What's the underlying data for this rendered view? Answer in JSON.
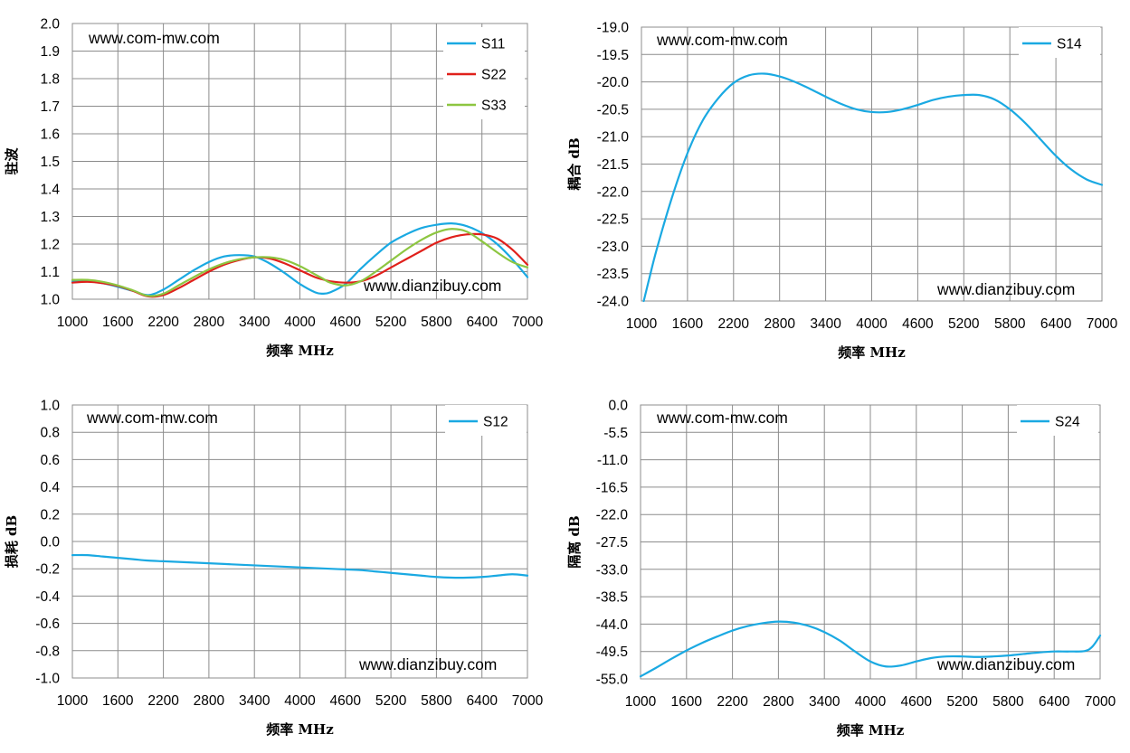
{
  "chart_data": [
    {
      "type": "line",
      "title": "",
      "xlabel": "频率 MHz",
      "ylabel": "驻波",
      "xlim": [
        1000,
        7000
      ],
      "ylim": [
        1.0,
        2.0
      ],
      "xticks": [
        "1000",
        "1600",
        "2200",
        "2800",
        "3400",
        "4000",
        "4600",
        "5200",
        "5800",
        "6400",
        "7000"
      ],
      "yticks": [
        "1.0",
        "1.1",
        "1.2",
        "1.3",
        "1.4",
        "1.5",
        "1.6",
        "1.7",
        "1.8",
        "1.9",
        "2.0"
      ],
      "grid": true,
      "legend_position": "top-right",
      "watermarks": [
        "www.com-mw.com",
        "www.dianzibuy.com"
      ],
      "x": [
        1000,
        1200,
        1400,
        1600,
        1800,
        2000,
        2200,
        2400,
        2600,
        2800,
        3000,
        3200,
        3400,
        3600,
        3800,
        4000,
        4200,
        4300,
        4400,
        4600,
        4800,
        5000,
        5200,
        5400,
        5600,
        5800,
        6000,
        6200,
        6400,
        6600,
        6800,
        7000
      ],
      "series": [
        {
          "name": "S11",
          "color": "#1aa9e2",
          "values": [
            1.065,
            1.065,
            1.058,
            1.045,
            1.03,
            1.015,
            1.035,
            1.07,
            1.105,
            1.135,
            1.155,
            1.16,
            1.155,
            1.13,
            1.095,
            1.055,
            1.025,
            1.02,
            1.025,
            1.055,
            1.11,
            1.16,
            1.205,
            1.235,
            1.258,
            1.27,
            1.275,
            1.265,
            1.24,
            1.2,
            1.145,
            1.08
          ]
        },
        {
          "name": "S22",
          "color": "#e0201b",
          "values": [
            1.06,
            1.063,
            1.058,
            1.048,
            1.03,
            1.01,
            1.015,
            1.04,
            1.07,
            1.1,
            1.125,
            1.142,
            1.152,
            1.148,
            1.13,
            1.105,
            1.08,
            1.072,
            1.065,
            1.06,
            1.065,
            1.085,
            1.115,
            1.145,
            1.175,
            1.205,
            1.225,
            1.235,
            1.235,
            1.22,
            1.18,
            1.125
          ]
        },
        {
          "name": "S33",
          "color": "#8dc641",
          "values": [
            1.07,
            1.07,
            1.063,
            1.05,
            1.032,
            1.012,
            1.02,
            1.05,
            1.08,
            1.108,
            1.13,
            1.145,
            1.152,
            1.152,
            1.142,
            1.12,
            1.09,
            1.075,
            1.06,
            1.05,
            1.065,
            1.1,
            1.14,
            1.18,
            1.215,
            1.242,
            1.255,
            1.245,
            1.21,
            1.17,
            1.135,
            1.115
          ]
        }
      ]
    },
    {
      "type": "line",
      "title": "",
      "xlabel": "频率 MHz",
      "ylabel": "耦合 dB",
      "xlim": [
        1000,
        7000
      ],
      "ylim": [
        -24.0,
        -19.0
      ],
      "xticks": [
        "1000",
        "1600",
        "2200",
        "2800",
        "3400",
        "4000",
        "4600",
        "5200",
        "5800",
        "6400",
        "7000"
      ],
      "yticks": [
        "-24.0",
        "-23.5",
        "-23.0",
        "-22.5",
        "-22.0",
        "-21.5",
        "-21.0",
        "-20.5",
        "-20.0",
        "-19.5",
        "-19.0"
      ],
      "grid": true,
      "legend_position": "top-right",
      "watermarks": [
        "www.com-mw.com",
        "www.dianzibuy.com"
      ],
      "x": [
        1030,
        1100,
        1200,
        1400,
        1600,
        1800,
        2000,
        2200,
        2400,
        2600,
        2800,
        3000,
        3200,
        3400,
        3600,
        3800,
        4000,
        4200,
        4400,
        4600,
        4800,
        5000,
        5200,
        5400,
        5600,
        5800,
        6000,
        6200,
        6400,
        6600,
        6800,
        7000
      ],
      "series": [
        {
          "name": "S14",
          "color": "#1aa9e2",
          "values": [
            -24.0,
            -23.6,
            -23.05,
            -22.1,
            -21.3,
            -20.7,
            -20.3,
            -20.02,
            -19.88,
            -19.85,
            -19.9,
            -20.0,
            -20.13,
            -20.27,
            -20.4,
            -20.5,
            -20.55,
            -20.55,
            -20.5,
            -20.42,
            -20.33,
            -20.27,
            -20.24,
            -20.24,
            -20.32,
            -20.5,
            -20.75,
            -21.05,
            -21.35,
            -21.6,
            -21.78,
            -21.88
          ]
        }
      ]
    },
    {
      "type": "line",
      "title": "",
      "xlabel": "频率 MHz",
      "ylabel": "损耗 dB",
      "xlim": [
        1000,
        7000
      ],
      "ylim": [
        -1.0,
        1.0
      ],
      "xticks": [
        "1000",
        "1600",
        "2200",
        "2800",
        "3400",
        "4000",
        "4600",
        "5200",
        "5800",
        "6400",
        "7000"
      ],
      "yticks": [
        "-1.0",
        "-0.8",
        "-0.6",
        "-0.4",
        "-0.2",
        "0.0",
        "0.2",
        "0.4",
        "0.6",
        "0.8",
        "1.0"
      ],
      "grid": true,
      "legend_position": "top-right",
      "watermarks": [
        "www.com-mw.com",
        "www.dianzibuy.com"
      ],
      "x": [
        1000,
        1200,
        1400,
        1600,
        1800,
        2000,
        2200,
        2400,
        2600,
        2800,
        3000,
        3200,
        3400,
        3600,
        3800,
        4000,
        4200,
        4400,
        4600,
        4800,
        5000,
        5200,
        5400,
        5600,
        5800,
        6000,
        6200,
        6400,
        6600,
        6800,
        7000
      ],
      "series": [
        {
          "name": "S12",
          "color": "#1aa9e2",
          "values": [
            -0.1,
            -0.1,
            -0.11,
            -0.12,
            -0.13,
            -0.14,
            -0.145,
            -0.15,
            -0.155,
            -0.16,
            -0.165,
            -0.17,
            -0.175,
            -0.18,
            -0.185,
            -0.19,
            -0.195,
            -0.2,
            -0.205,
            -0.21,
            -0.22,
            -0.23,
            -0.24,
            -0.25,
            -0.26,
            -0.265,
            -0.265,
            -0.26,
            -0.25,
            -0.24,
            -0.25
          ]
        }
      ]
    },
    {
      "type": "line",
      "title": "",
      "xlabel": "频率 MHz",
      "ylabel": "隔离 dB",
      "xlim": [
        1000,
        7000
      ],
      "ylim": [
        -55.0,
        0.0
      ],
      "xticks": [
        "1000",
        "1600",
        "2200",
        "2800",
        "3400",
        "4000",
        "4600",
        "5200",
        "5800",
        "6400",
        "7000"
      ],
      "yticks": [
        "-55.0",
        "-49.5",
        "-44.0",
        "-38.5",
        "-33.0",
        "-27.5",
        "-22.0",
        "-16.5",
        "-11.0",
        "-5.5",
        "0.0"
      ],
      "grid": true,
      "legend_position": "top-right",
      "watermarks": [
        "www.com-mw.com",
        "www.dianzibuy.com"
      ],
      "x": [
        1000,
        1200,
        1400,
        1600,
        1800,
        2000,
        2200,
        2400,
        2600,
        2800,
        3000,
        3200,
        3400,
        3600,
        3800,
        4000,
        4200,
        4400,
        4600,
        4800,
        5000,
        5200,
        5400,
        5600,
        5800,
        6000,
        6200,
        6400,
        6600,
        6800,
        6900,
        7000
      ],
      "series": [
        {
          "name": "S24",
          "color": "#1aa9e2",
          "values": [
            -54.5,
            -52.8,
            -51.0,
            -49.3,
            -47.8,
            -46.5,
            -45.3,
            -44.4,
            -43.8,
            -43.5,
            -43.7,
            -44.4,
            -45.6,
            -47.3,
            -49.5,
            -51.5,
            -52.5,
            -52.3,
            -51.5,
            -50.8,
            -50.5,
            -50.5,
            -50.6,
            -50.5,
            -50.3,
            -50.0,
            -49.7,
            -49.5,
            -49.5,
            -49.4,
            -48.5,
            -46.3
          ]
        }
      ]
    }
  ]
}
